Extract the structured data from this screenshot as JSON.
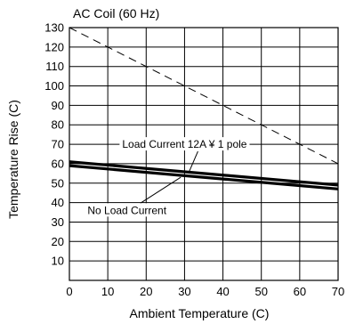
{
  "chart_data": {
    "type": "line",
    "title": "AC Coil (60 Hz)",
    "xlabel": "Ambient Temperature (C)",
    "ylabel": "Temperature Rise (C)",
    "xlim": [
      0,
      70
    ],
    "ylim": [
      0,
      130
    ],
    "xticks": [
      0,
      10,
      20,
      30,
      40,
      50,
      60,
      70
    ],
    "yticks": [
      10,
      20,
      30,
      40,
      50,
      60,
      70,
      80,
      90,
      100,
      110,
      120,
      130
    ],
    "grid": true,
    "series": [
      {
        "name": "Load Current 12A ¥ 1 pole",
        "x": [
          0,
          70
        ],
        "y": [
          61,
          49
        ],
        "style": "solid"
      },
      {
        "name": "No Load Current",
        "x": [
          0,
          70
        ],
        "y": [
          59,
          47
        ],
        "style": "solid"
      },
      {
        "name": "",
        "x": [
          0,
          70
        ],
        "y": [
          130,
          60
        ],
        "style": "dashed"
      }
    ],
    "annotations": [
      {
        "text": "Load Current 12A ¥ 1 pole",
        "target_series": 0,
        "pointer_x": 31,
        "pointer_y": 55,
        "label_x": 30,
        "label_y": 70
      },
      {
        "text": "No Load Current",
        "target_series": 1,
        "pointer_x": 29,
        "pointer_y": 53,
        "label_x": 15,
        "label_y": 36
      }
    ]
  }
}
